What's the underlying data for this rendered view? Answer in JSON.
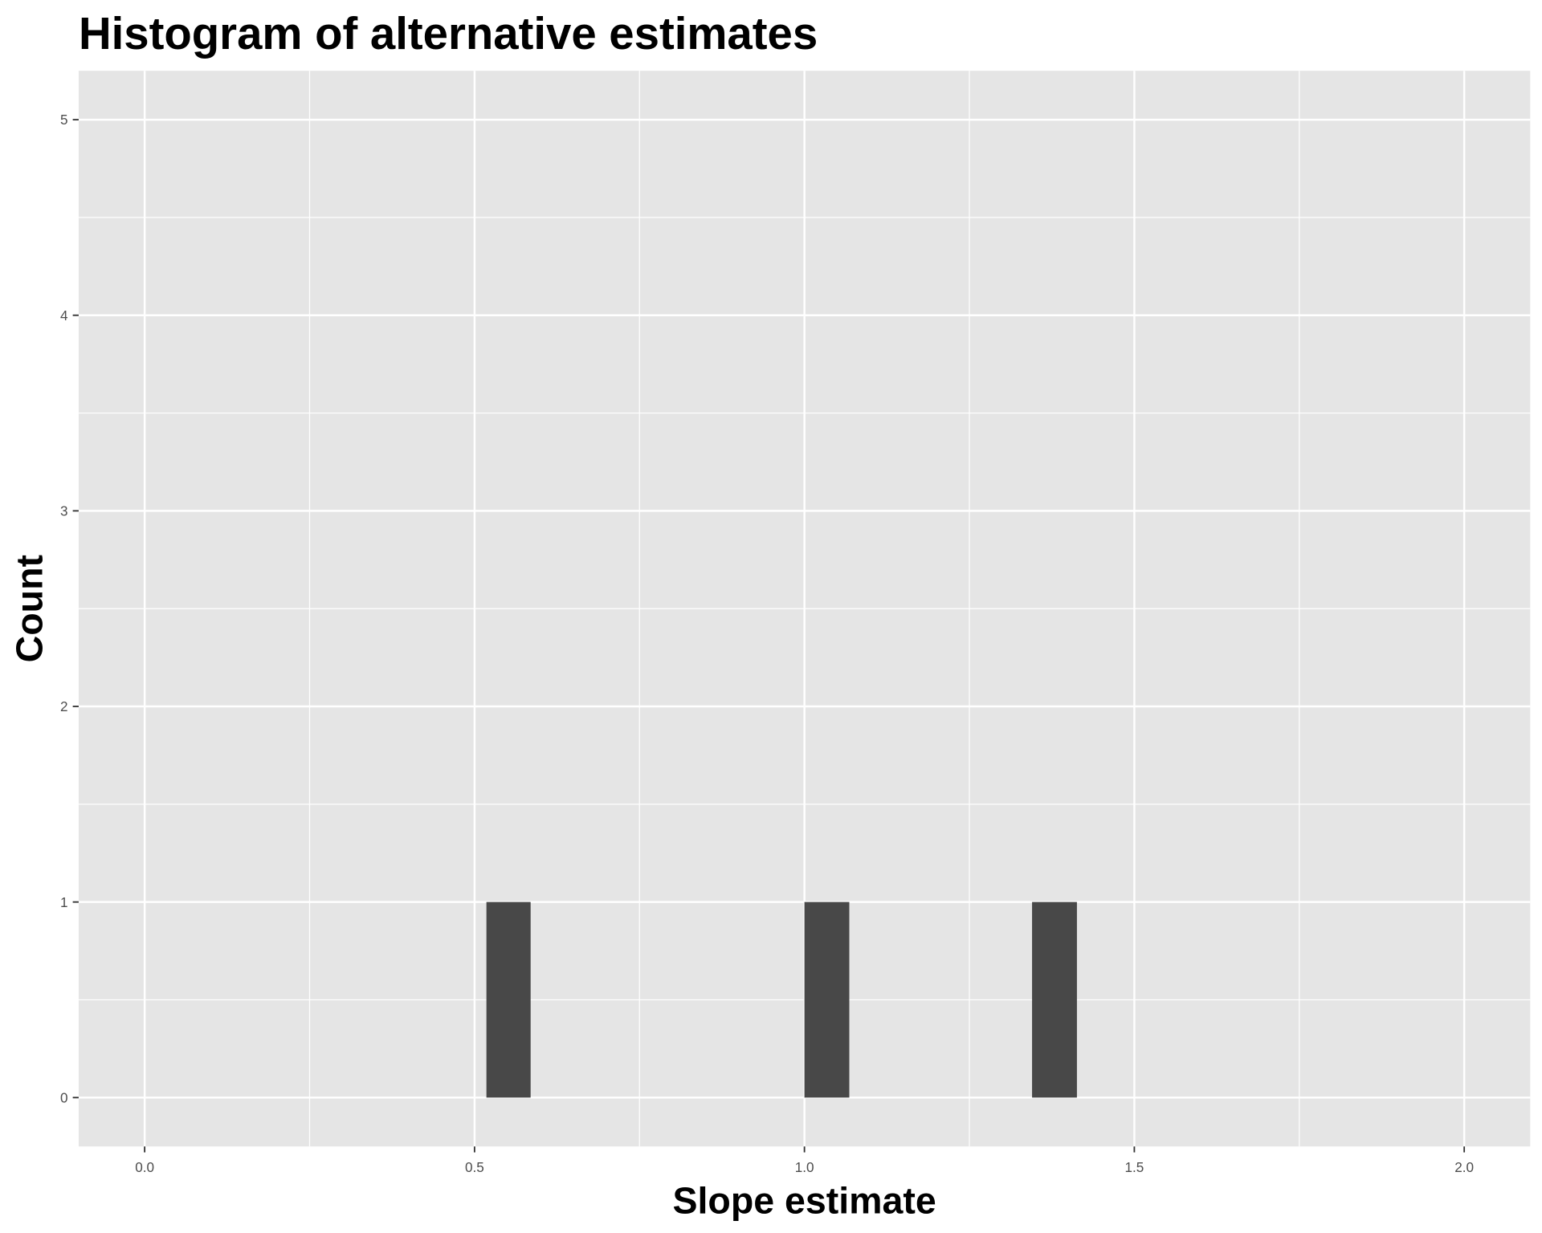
{
  "chart_data": {
    "type": "bar",
    "subtype": "histogram",
    "title": "Histogram of alternative estimates",
    "xlabel": "Slope estimate",
    "ylabel": "Count",
    "xlim": [
      -0.1,
      2.1
    ],
    "ylim": [
      -0.25,
      5.25
    ],
    "xticks": [
      0.0,
      0.5,
      1.0,
      1.5,
      2.0
    ],
    "xtick_labels": [
      "0.0",
      "0.5",
      "1.0",
      "1.5",
      "2.0"
    ],
    "yticks": [
      0,
      1,
      2,
      3,
      4,
      5
    ],
    "ytick_labels": [
      "0",
      "1",
      "2",
      "3",
      "4",
      "5"
    ],
    "grid": true,
    "bars": [
      {
        "xmin": 0.518,
        "xmax": 0.585,
        "count": 1
      },
      {
        "xmin": 1.0,
        "xmax": 1.068,
        "count": 1
      },
      {
        "xmin": 1.345,
        "xmax": 1.413,
        "count": 1
      }
    ],
    "colors": {
      "panel": "#e5e5e5",
      "grid": "#ffffff",
      "bar": "#484848"
    }
  }
}
